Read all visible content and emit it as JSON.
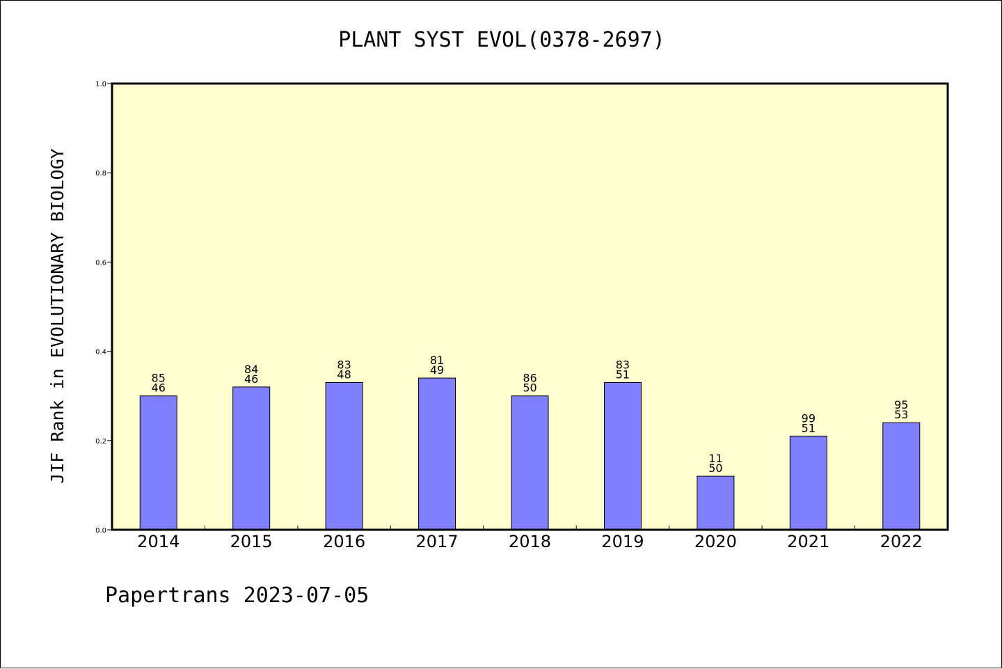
{
  "chart_data": {
    "type": "bar",
    "title": "PLANT SYST EVOL(0378-2697)",
    "ylabel": "JIF Rank in EVOLUTIONARY BIOLOGY",
    "xlabel": "",
    "ylim": [
      0,
      1.0
    ],
    "yticks": [
      "0.0",
      "0.2",
      "0.4",
      "0.6",
      "0.8",
      "1.0"
    ],
    "categories": [
      "2014",
      "2015",
      "2016",
      "2017",
      "2018",
      "2019",
      "2020",
      "2021",
      "2022"
    ],
    "values": [
      0.3,
      0.32,
      0.33,
      0.34,
      0.3,
      0.33,
      0.12,
      0.21,
      0.24
    ],
    "label_top": [
      "85",
      "84",
      "83",
      "81",
      "86",
      "83",
      "11",
      "99",
      "95"
    ],
    "label_bottom": [
      "46",
      "46",
      "48",
      "49",
      "50",
      "51",
      "50",
      "51",
      "53"
    ],
    "grid": false,
    "legend": "none",
    "colors": {
      "plot_background": "#ffffd0",
      "bar_fill": "#8080ff",
      "bar_stroke": "#000000",
      "axis": "#000000"
    }
  },
  "footer": {
    "text": "Papertrans 2023-07-05"
  }
}
